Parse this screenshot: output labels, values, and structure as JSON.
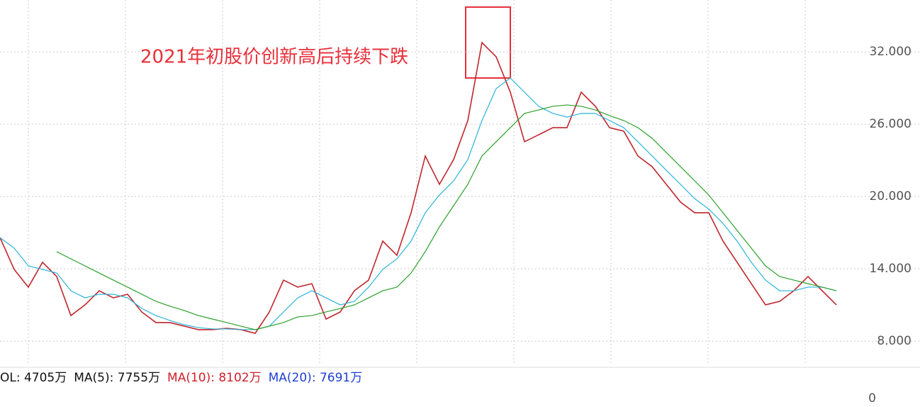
{
  "chart_data": {
    "type": "line",
    "annotation": "2021年初股价创新高后持续下跌",
    "annotation_color": "#e8303a",
    "ylim": [
      6.3,
      36.3
    ],
    "yticks": [
      {
        "value": 8,
        "label": "8.000"
      },
      {
        "value": 14,
        "label": "14.000"
      },
      {
        "value": 20,
        "label": "20.000"
      },
      {
        "value": 26,
        "label": "26.000"
      },
      {
        "value": 32,
        "label": "32.000"
      }
    ],
    "grid": true,
    "series": [
      {
        "color": "#c0262d",
        "values": [
          16.59,
          13.95,
          12.48,
          14.54,
          13.36,
          10.12,
          11.01,
          12.18,
          11.59,
          11.89,
          10.42,
          9.54,
          9.54,
          9.24,
          8.95,
          8.95,
          9.06,
          8.95,
          8.65,
          10.42,
          13.06,
          12.48,
          12.77,
          9.83,
          10.42,
          12.18,
          13.06,
          16.3,
          15.12,
          18.65,
          23.36,
          21.01,
          23.06,
          26.3,
          32.77,
          31.59,
          28.65,
          24.54,
          25.12,
          25.71,
          25.71,
          28.65,
          27.48,
          25.71,
          25.42,
          23.36,
          22.48,
          21.01,
          19.54,
          18.65,
          18.65,
          16.3,
          14.54,
          12.77,
          11.01,
          11.3,
          12.18,
          13.36,
          12.18,
          11.01
        ]
      },
      {
        "color": "#2bb5d8",
        "values": [
          16.59,
          15.71,
          14.24,
          13.95,
          13.65,
          12.18,
          11.59,
          11.89,
          11.89,
          11.59,
          10.71,
          10.12,
          9.71,
          9.36,
          9.12,
          9.01,
          9.01,
          8.95,
          8.95,
          9.24,
          10.42,
          11.59,
          12.18,
          11.59,
          11.01,
          11.3,
          12.48,
          13.95,
          14.83,
          16.3,
          18.65,
          20.12,
          21.3,
          23.06,
          26.3,
          28.95,
          29.83,
          28.65,
          27.48,
          26.89,
          26.59,
          26.89,
          26.89,
          26.3,
          25.71,
          24.54,
          23.36,
          22.18,
          21.01,
          19.83,
          18.95,
          17.77,
          16.3,
          14.54,
          13.06,
          12.18,
          12.18,
          12.48,
          12.48,
          12.18
        ]
      },
      {
        "color": "#2ca02c",
        "values": [
          null,
          null,
          null,
          null,
          15.42,
          14.83,
          14.24,
          13.65,
          13.06,
          12.48,
          11.89,
          11.3,
          10.89,
          10.54,
          10.12,
          9.83,
          9.54,
          9.24,
          8.95,
          9.24,
          9.54,
          10.01,
          10.12,
          10.42,
          10.71,
          11.01,
          11.59,
          12.18,
          12.48,
          13.65,
          15.42,
          17.48,
          19.24,
          21.01,
          23.36,
          24.54,
          25.71,
          26.89,
          27.18,
          27.48,
          27.59,
          27.48,
          27.18,
          26.71,
          26.3,
          25.71,
          24.83,
          23.65,
          22.48,
          21.3,
          20.12,
          18.65,
          17.18,
          15.71,
          14.24,
          13.36,
          13.06,
          12.77,
          12.48,
          12.18
        ]
      }
    ],
    "volume_legend": [
      {
        "label": "OL: 4705万",
        "color": "#111111"
      },
      {
        "label": "MA(5): 7755万",
        "color": "#111111"
      },
      {
        "label": "MA(10): 8102万",
        "color": "#d0202a"
      },
      {
        "label": "MA(20): 7691万",
        "color": "#1f3fd6"
      }
    ],
    "volume_axis_label": "0"
  }
}
